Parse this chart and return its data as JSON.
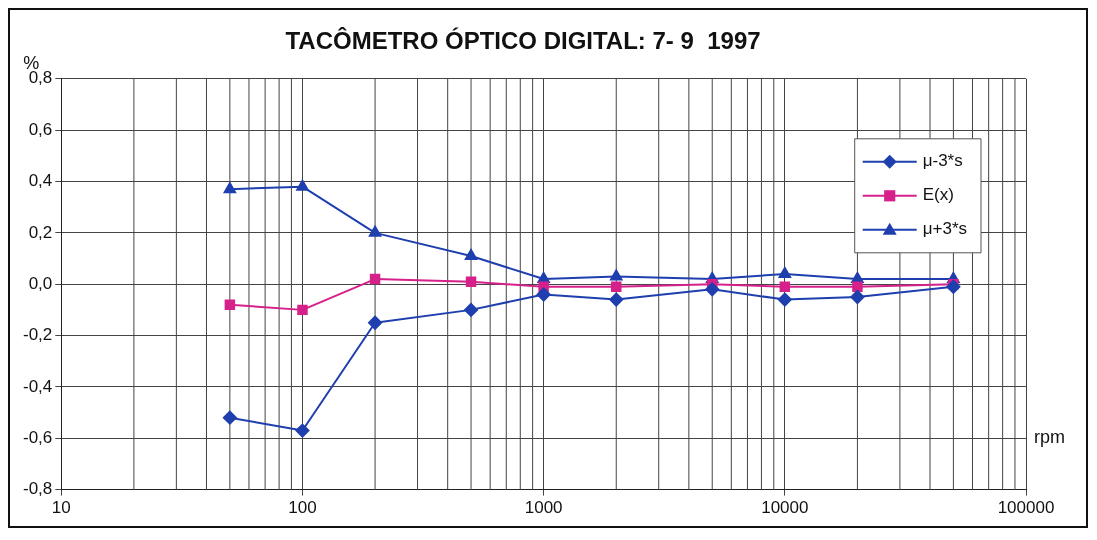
{
  "chart_data": {
    "type": "line",
    "title": "TACÔMETRO ÓPTICO DIGITAL: 7- 9  1997",
    "xlabel": "rpm",
    "ylabel": "%",
    "x": [
      50,
      100,
      200,
      500,
      1000,
      2000,
      5000,
      10000,
      20000,
      50000
    ],
    "series": [
      {
        "name": "μ-3*s",
        "color": "#1f3fae",
        "marker": "diamond",
        "values": [
          -0.52,
          -0.57,
          -0.15,
          -0.1,
          -0.04,
          -0.06,
          -0.02,
          -0.06,
          -0.05,
          -0.01
        ]
      },
      {
        "name": "E(x)",
        "color": "#d6218a",
        "marker": "square",
        "values": [
          -0.08,
          -0.1,
          0.02,
          0.01,
          -0.01,
          -0.01,
          0.0,
          -0.01,
          -0.01,
          0.0
        ]
      },
      {
        "name": "μ+3*s",
        "color": "#1f3fae",
        "marker": "triangle",
        "values": [
          0.37,
          0.38,
          0.2,
          0.11,
          0.02,
          0.03,
          0.02,
          0.04,
          0.02,
          0.02
        ]
      }
    ],
    "log": "x",
    "xlim": [
      10,
      100000
    ],
    "xticks": [
      10,
      100,
      1000,
      10000,
      100000
    ],
    "ylim": [
      -0.8,
      0.8
    ],
    "yticks": [
      {
        "value": -0.8,
        "label": "-0,8"
      },
      {
        "value": -0.6,
        "label": "-0,6"
      },
      {
        "value": -0.4,
        "label": "-0,4"
      },
      {
        "value": -0.2,
        "label": "-0,2"
      },
      {
        "value": 0,
        "label": "0,0"
      },
      {
        "value": 0.2,
        "label": "0,2"
      },
      {
        "value": 0.4,
        "label": "0,4"
      },
      {
        "value": 0.6,
        "label": "0,6"
      },
      {
        "value": 0.8,
        "label": "0,8"
      }
    ],
    "grid": true,
    "legend": "top right",
    "line_style": "solid"
  }
}
